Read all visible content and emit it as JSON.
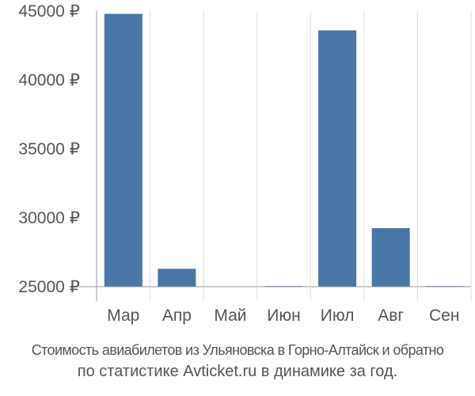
{
  "chart_data": {
    "type": "bar",
    "categories": [
      "Мар",
      "Апр",
      "Май",
      "Июн",
      "Июл",
      "Авг",
      "Сен"
    ],
    "values": [
      44800,
      26300,
      null,
      25050,
      43600,
      29250,
      25050
    ],
    "ylim": [
      25000,
      45000
    ],
    "yticks": [
      25000,
      30000,
      35000,
      40000,
      45000
    ],
    "ytick_suffix": " ₽",
    "grid": "vertical",
    "bar_color": "#4a76a8",
    "grid_color": "#dddddd",
    "axis_color": "#999999",
    "tick_label_color": "#555555"
  },
  "caption": {
    "line1": "Стоимость авиабилетов из Ульяновска в Горно-Алтайск и обратно",
    "line2": "по статистике Avticket.ru в динамике за год."
  }
}
